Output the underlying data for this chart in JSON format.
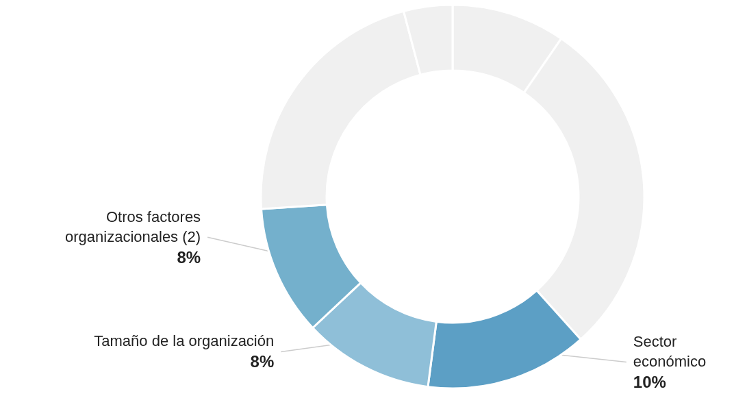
{
  "chart_data": {
    "type": "donut",
    "categories": [
      null,
      null,
      "Sector\neconómico",
      "Tamaño de la organización",
      "Otros factores\norganizacionales (2)",
      null,
      null
    ],
    "values": [
      7,
      21,
      10,
      8,
      8,
      16,
      3
    ],
    "value_labels": [
      null,
      null,
      "10%",
      "8%",
      "8%",
      null,
      null
    ],
    "colors": [
      "#f0f0f0",
      "#f0f0f0",
      "#5c9fc5",
      "#8fbfd8",
      "#74b0cc",
      "#f0f0f0",
      "#f0f0f0"
    ],
    "legend": false
  }
}
